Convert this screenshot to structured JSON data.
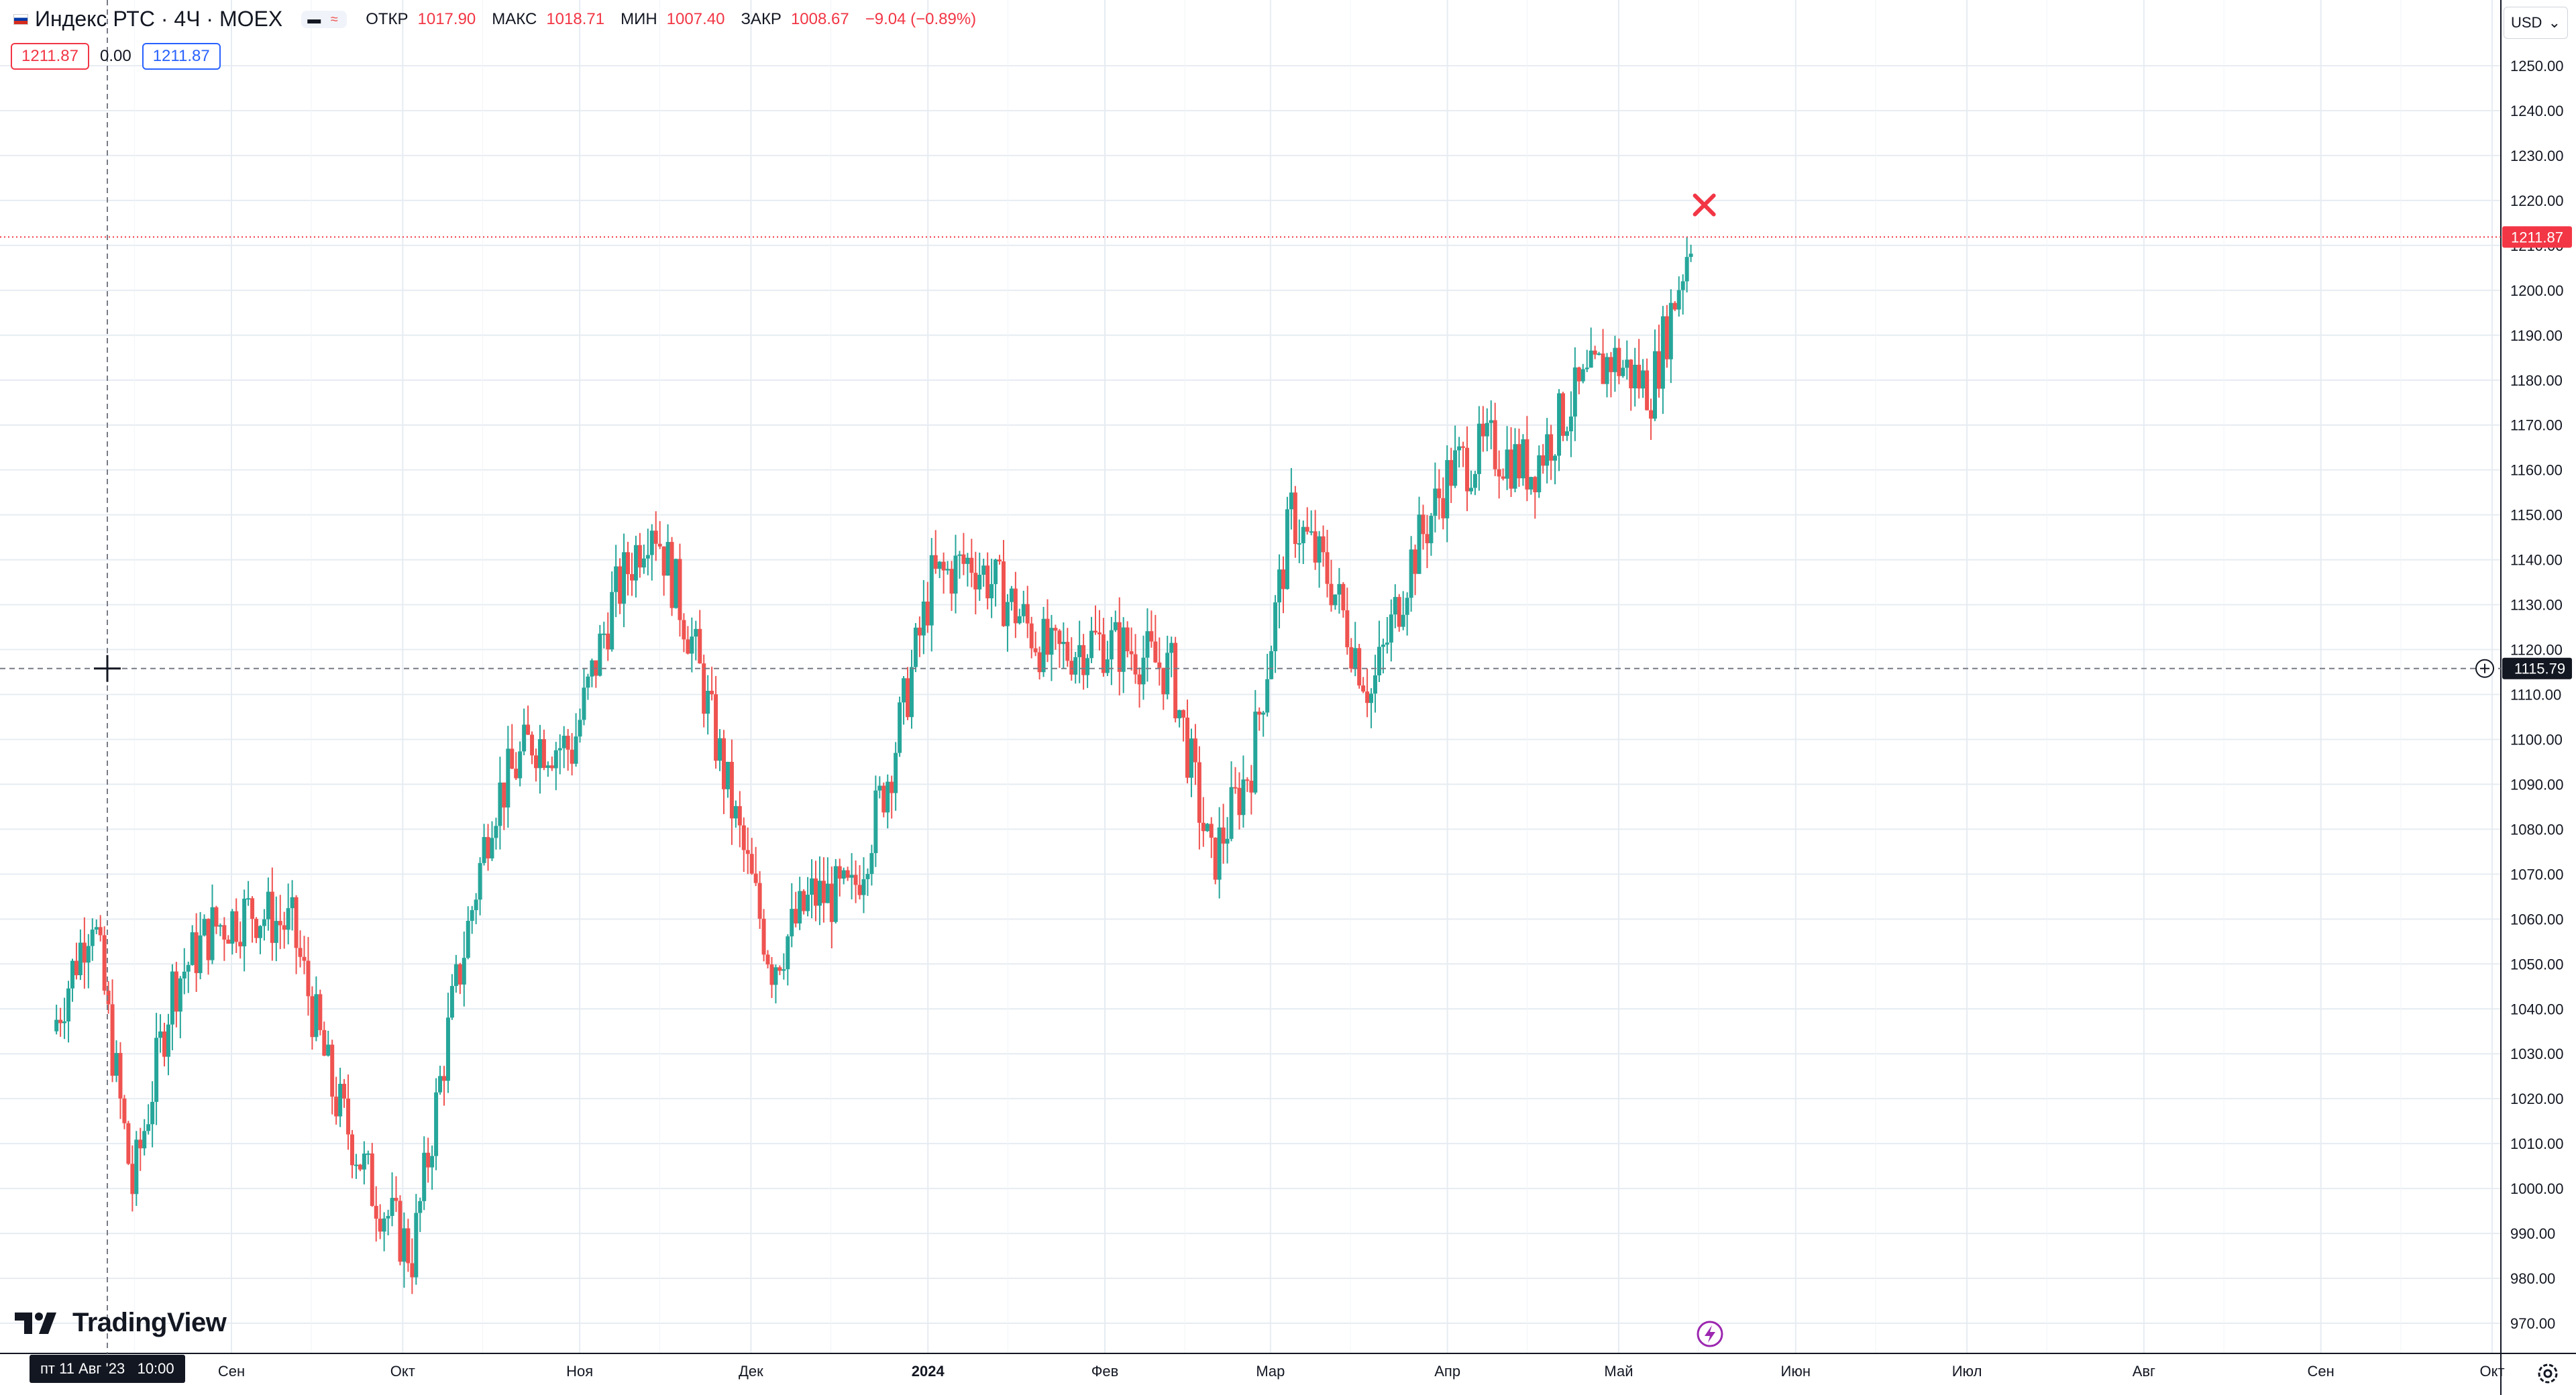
{
  "header": {
    "title": "Индекс РТС · 4Ч · MOEX",
    "open_label": "ОТКР",
    "open": "1017.90",
    "high_label": "МАКС",
    "high": "1018.71",
    "low_label": "МИН",
    "low": "1007.40",
    "close_label": "ЗАКР",
    "close": "1008.67",
    "change": "−9.04 (−0.89%)",
    "sell_price": "1211.87",
    "spread": "0.00",
    "buy_price": "1211.87"
  },
  "currency": "USD",
  "logo": "TradingView",
  "crosshair": {
    "date_label": "пт 11 Авг '23",
    "time_label": "10:00",
    "price_label": "1115.79",
    "price": 1115.79
  },
  "last_price": {
    "label": "1211.87",
    "value": 1211.87
  },
  "colors": {
    "up": "#26a69a",
    "down": "#ef5350",
    "grid": "#e6ecf2",
    "axis_text": "#131722",
    "price_line": "#f23645"
  },
  "icons": {
    "flag": "russia-flag-icon",
    "settings": "gear-icon",
    "alert": "lightning-icon",
    "marker": "cross-marker-icon",
    "crosshair_add": "plus-circle-icon"
  },
  "chart_data": {
    "type": "candlestick",
    "title": "Индекс РТС",
    "xlabel": "",
    "ylabel": "",
    "ylim": [
      965,
      1255
    ],
    "grid": true,
    "y_ticks": [
      1250,
      1240,
      1230,
      1220,
      1210,
      1200,
      1190,
      1180,
      1170,
      1160,
      1150,
      1140,
      1130,
      1120,
      1110,
      1100,
      1090,
      1080,
      1070,
      1060,
      1050,
      1040,
      1030,
      1020,
      1010,
      1000,
      990,
      980,
      970
    ],
    "x_ticks": [
      {
        "label": "Сен",
        "date": "2023-09-01"
      },
      {
        "label": "Окт",
        "date": "2023-10-01"
      },
      {
        "label": "Ноя",
        "date": "2023-11-01"
      },
      {
        "label": "Дек",
        "date": "2023-12-01"
      },
      {
        "label": "2024",
        "date": "2024-01-01"
      },
      {
        "label": "Фев",
        "date": "2024-02-01"
      },
      {
        "label": "Мар",
        "date": "2024-03-01"
      },
      {
        "label": "Апр",
        "date": "2024-04-01"
      },
      {
        "label": "Май",
        "date": "2024-05-01"
      },
      {
        "label": "Июн",
        "date": "2024-06-01"
      },
      {
        "label": "Июл",
        "date": "2024-07-01"
      },
      {
        "label": "Авг",
        "date": "2024-08-01"
      },
      {
        "label": "Сен",
        "date": "2024-09-01"
      },
      {
        "label": "Окт",
        "date": "2024-10-01"
      }
    ],
    "x": [
      "2023-08-01",
      "2023-08-08",
      "2023-08-15",
      "2023-08-22",
      "2023-08-29",
      "2023-09-05",
      "2023-09-12",
      "2023-09-19",
      "2023-09-26",
      "2023-10-03",
      "2023-10-10",
      "2023-10-17",
      "2023-10-24",
      "2023-10-31",
      "2023-11-07",
      "2023-11-14",
      "2023-11-21",
      "2023-11-28",
      "2023-12-05",
      "2023-12-12",
      "2023-12-19",
      "2023-12-26",
      "2024-01-02",
      "2024-01-09",
      "2024-01-16",
      "2024-01-23",
      "2024-01-30",
      "2024-02-06",
      "2024-02-13",
      "2024-02-20",
      "2024-02-27",
      "2024-03-05",
      "2024-03-12",
      "2024-03-19",
      "2024-03-26",
      "2024-04-02",
      "2024-04-09",
      "2024-04-16",
      "2024-04-23",
      "2024-04-30",
      "2024-05-07",
      "2024-05-14"
    ],
    "close": [
      1035,
      1062,
      1000,
      1045,
      1058,
      1062,
      1058,
      1022,
      1000,
      985,
      1040,
      1085,
      1100,
      1098,
      1130,
      1150,
      1122,
      1085,
      1050,
      1065,
      1065,
      1095,
      1135,
      1140,
      1130,
      1118,
      1122,
      1120,
      1115,
      1072,
      1095,
      1150,
      1135,
      1110,
      1140,
      1160,
      1165,
      1160,
      1175,
      1185,
      1178,
      1212
    ],
    "series": [
      {
        "name": "Индекс РТС",
        "values": [
          1035,
          1062,
          1000,
          1045,
          1058,
          1062,
          1058,
          1022,
          1000,
          985,
          1040,
          1085,
          1100,
          1098,
          1130,
          1150,
          1122,
          1085,
          1050,
          1065,
          1065,
          1095,
          1135,
          1140,
          1130,
          1118,
          1122,
          1120,
          1115,
          1072,
          1095,
          1150,
          1135,
          1110,
          1140,
          1160,
          1165,
          1160,
          1175,
          1185,
          1178,
          1212
        ]
      }
    ],
    "annotations": [
      {
        "type": "cross-marker",
        "date": "2024-05-16",
        "price": 1219
      }
    ]
  }
}
